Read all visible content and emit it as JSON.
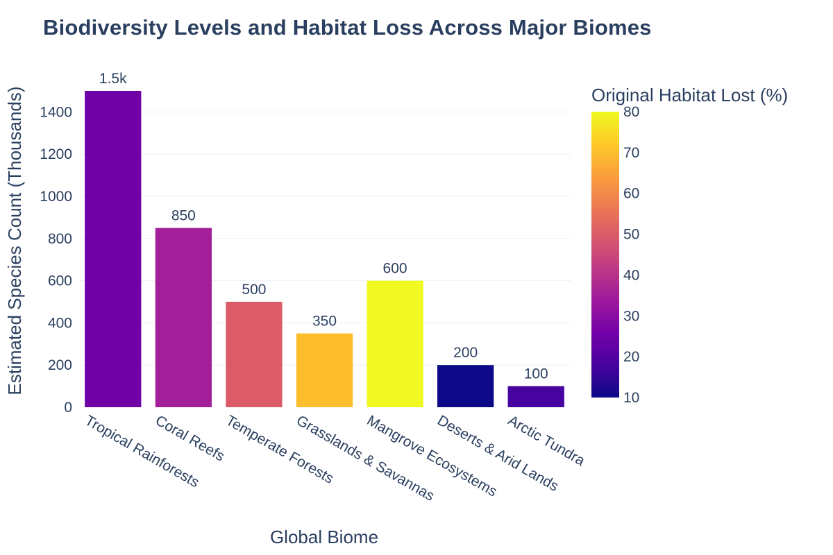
{
  "chart_data": {
    "type": "bar",
    "title": "Biodiversity Levels and Habitat Loss Across Major Biomes",
    "xlabel": "Global Biome",
    "ylabel": "Estimated Species Count (Thousands)",
    "categories": [
      "Tropical Rainforests",
      "Coral Reefs",
      "Temperate Forests",
      "Grasslands & Savannas",
      "Mangrove Ecosystems",
      "Deserts & Arid Lands",
      "Arctic Tundra"
    ],
    "values": [
      1500,
      850,
      500,
      350,
      600,
      200,
      100
    ],
    "value_labels": [
      "1.5k",
      "850",
      "500",
      "350",
      "600",
      "200",
      "100"
    ],
    "habitat_lost_pct": [
      25,
      35,
      50,
      70,
      80,
      10,
      18
    ],
    "ylim": [
      0,
      1500
    ],
    "yticks": [
      0,
      200,
      400,
      600,
      800,
      1000,
      1200,
      1400
    ],
    "grid": true,
    "colorbar": {
      "title": "Original Habitat Lost (%)",
      "range": [
        10,
        80
      ],
      "ticks": [
        10,
        20,
        30,
        40,
        50,
        60,
        70,
        80
      ],
      "colorscale": [
        "#0d0887",
        "#46039f",
        "#7201a8",
        "#9c179e",
        "#bd3786",
        "#d8576b",
        "#ed7953",
        "#fb9f3a",
        "#fdca26",
        "#f0f921"
      ]
    }
  }
}
